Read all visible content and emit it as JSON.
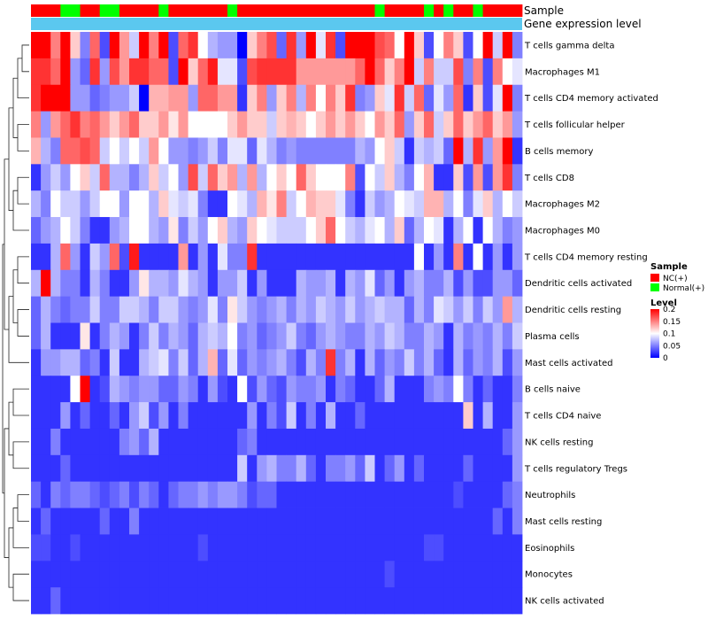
{
  "chart_data": {
    "type": "heatmap",
    "title": "",
    "rows": [
      "T cells gamma delta",
      "Macrophages M1",
      "T cells CD4 memory activated",
      "T cells follicular helper",
      "B cells memory",
      "T cells CD8",
      "Macrophages M2",
      "Macrophages M0",
      "T cells CD4 memory resting",
      "Dendritic cells activated",
      "Dendritic cells resting",
      "Plasma cells",
      "Mast cells activated",
      "B cells naive",
      "T cells CD4 naive",
      "NK cells resting",
      "T cells regulatory  Tregs",
      "Neutrophils",
      "Mast cells resting",
      "Eosinophils",
      "Monocytes",
      "NK cells activated"
    ],
    "sample_annotation": {
      "label": "Sample",
      "values": [
        "NC",
        "NC",
        "NC",
        "Normal",
        "Normal",
        "NC",
        "NC",
        "Normal",
        "Normal",
        "NC",
        "NC",
        "NC",
        "NC",
        "Normal",
        "NC",
        "NC",
        "NC",
        "NC",
        "NC",
        "NC",
        "Normal",
        "NC",
        "NC",
        "NC",
        "NC",
        "NC",
        "NC",
        "NC",
        "NC",
        "NC",
        "NC",
        "NC",
        "NC",
        "NC",
        "NC",
        "Normal",
        "NC",
        "NC",
        "NC",
        "NC",
        "Normal",
        "NC",
        "Normal",
        "NC",
        "NC",
        "Normal",
        "NC",
        "NC",
        "NC",
        "NC"
      ]
    },
    "gene_annotation": {
      "label": "Gene expression level",
      "color": "#5BC8EF"
    },
    "values": [
      [
        0.2,
        0.2,
        0.15,
        0.2,
        0.12,
        0.05,
        0.16,
        0.03,
        0.2,
        0.14,
        0.08,
        0.2,
        0.15,
        0.2,
        0.03,
        0.16,
        0.18,
        0.1,
        0.07,
        0.06,
        0.06,
        0,
        0.12,
        0.15,
        0.17,
        0.04,
        0.18,
        0.06,
        0.2,
        0.09,
        0.18,
        0.03,
        0.2,
        0.2,
        0.2,
        0.17,
        0.16,
        0.1,
        0.2,
        0.12,
        0.03,
        0.1,
        0.15,
        0.12,
        0.03,
        0.1,
        0.2,
        0.08,
        0.2,
        0.05
      ],
      [
        0.18,
        0.18,
        0.16,
        0.2,
        0.06,
        0.04,
        0.18,
        0.06,
        0.17,
        0.14,
        0.18,
        0.18,
        0.16,
        0.16,
        0.03,
        0.2,
        0.12,
        0.16,
        0.19,
        0.09,
        0.09,
        0.03,
        0.17,
        0.18,
        0.18,
        0.18,
        0.18,
        0.14,
        0.14,
        0.14,
        0.14,
        0.14,
        0.14,
        0.16,
        0.2,
        0.16,
        0.12,
        0.15,
        0.2,
        0.08,
        0.15,
        0.08,
        0.08,
        0.17,
        0.05,
        0.15,
        0.03,
        0.15,
        0.1,
        0.09
      ],
      [
        0.18,
        0.2,
        0.2,
        0.2,
        0.06,
        0.06,
        0.04,
        0.05,
        0.06,
        0.06,
        0.08,
        0,
        0.13,
        0.13,
        0.14,
        0.14,
        0.06,
        0.16,
        0.16,
        0.14,
        0.14,
        0.02,
        0.12,
        0.15,
        0.06,
        0.12,
        0.15,
        0.07,
        0.15,
        0.1,
        0.15,
        0.12,
        0.18,
        0.05,
        0.06,
        0.12,
        0.09,
        0.18,
        0.08,
        0.16,
        0.04,
        0.09,
        0.06,
        0.16,
        0.02,
        0.12,
        0.03,
        0.09,
        0.2,
        0.05
      ],
      [
        0.15,
        0.06,
        0.14,
        0.16,
        0.18,
        0.15,
        0.16,
        0.14,
        0.12,
        0.14,
        0.16,
        0.12,
        0.12,
        0.14,
        0.11,
        0.14,
        0.1,
        0.1,
        0.1,
        0.1,
        0.12,
        0.14,
        0.12,
        0.12,
        0.08,
        0.12,
        0.13,
        0.12,
        0.1,
        0.12,
        0.14,
        0.12,
        0.14,
        0.12,
        0.1,
        0.14,
        0.12,
        0.16,
        0.06,
        0.12,
        0.16,
        0.08,
        0.12,
        0.16,
        0.12,
        0.14,
        0.16,
        0.12,
        0.14,
        0.06
      ],
      [
        0.13,
        0.07,
        0.05,
        0.16,
        0.16,
        0.17,
        0.16,
        0.08,
        0.1,
        0.08,
        0.1,
        0.08,
        0.14,
        0.1,
        0.06,
        0.06,
        0.05,
        0.06,
        0.08,
        0.05,
        0.09,
        0.09,
        0.04,
        0.09,
        0.07,
        0.05,
        0.06,
        0.05,
        0.05,
        0.05,
        0.05,
        0.05,
        0.05,
        0.07,
        0.06,
        0.1,
        0.12,
        0.08,
        0.02,
        0.08,
        0.07,
        0.08,
        0.04,
        0.2,
        0.07,
        0.18,
        0.06,
        0.14,
        0.2,
        0.02
      ],
      [
        0.02,
        0.06,
        0.08,
        0.06,
        0.1,
        0.12,
        0.08,
        0.16,
        0.07,
        0.07,
        0.05,
        0.07,
        0.12,
        0.08,
        0.1,
        0.06,
        0.17,
        0.08,
        0.16,
        0.12,
        0.14,
        0.07,
        0.14,
        0.07,
        0.1,
        0.12,
        0.1,
        0.16,
        0.12,
        0.1,
        0.1,
        0.1,
        0.15,
        0.03,
        0.1,
        0.08,
        0.12,
        0.07,
        0.05,
        0.1,
        0.13,
        0.02,
        0.02,
        0.12,
        0.03,
        0.14,
        0.03,
        0.14,
        0.18,
        0.05
      ],
      [
        0.07,
        0.05,
        0.1,
        0.08,
        0.08,
        0.06,
        0.08,
        0.1,
        0.1,
        0.06,
        0.1,
        0.1,
        0.07,
        0.12,
        0.09,
        0.08,
        0.09,
        0.05,
        0.02,
        0.02,
        0.1,
        0.09,
        0.07,
        0.13,
        0.11,
        0.15,
        0.08,
        0.1,
        0.13,
        0.12,
        0.12,
        0.09,
        0.05,
        0.02,
        0.08,
        0.06,
        0.07,
        0.1,
        0.09,
        0.08,
        0.13,
        0.13,
        0.07,
        0.1,
        0.05,
        0.09,
        0.12,
        0.07,
        0.1,
        0.08
      ],
      [
        0.04,
        0.06,
        0.07,
        0.1,
        0.08,
        0.05,
        0.02,
        0.02,
        0.06,
        0.07,
        0.1,
        0.1,
        0.07,
        0.06,
        0.11,
        0.05,
        0.08,
        0.06,
        0.1,
        0.12,
        0.07,
        0.06,
        0.12,
        0.1,
        0.09,
        0.08,
        0.08,
        0.08,
        0.1,
        0.12,
        0.16,
        0.1,
        0.08,
        0.07,
        0.09,
        0.1,
        0.07,
        0.12,
        0.04,
        0.07,
        0.1,
        0.09,
        0.02,
        0.07,
        0.1,
        0.02,
        0.1,
        0.07,
        0.05,
        0.06
      ],
      [
        0.02,
        0.02,
        0.07,
        0.16,
        0.06,
        0.02,
        0.08,
        0.06,
        0.16,
        0.03,
        0.19,
        0.02,
        0.02,
        0.02,
        0.02,
        0.14,
        0.02,
        0.06,
        0.02,
        0.09,
        0.05,
        0.05,
        0.18,
        0.02,
        0.02,
        0.02,
        0.02,
        0.02,
        0.02,
        0.02,
        0.02,
        0.02,
        0.02,
        0.02,
        0.02,
        0.02,
        0.02,
        0.02,
        0.02,
        0.1,
        0.02,
        0.06,
        0.02,
        0.15,
        0.02,
        0.1,
        0.02,
        0.06,
        0.02,
        0.06
      ],
      [
        0.07,
        0.2,
        0.07,
        0.05,
        0.05,
        0.02,
        0.07,
        0.05,
        0.02,
        0.02,
        0.06,
        0.11,
        0.07,
        0.07,
        0.06,
        0.09,
        0.07,
        0.06,
        0.02,
        0.06,
        0.06,
        0.08,
        0.02,
        0.06,
        0.02,
        0.02,
        0.02,
        0.07,
        0.06,
        0.06,
        0.07,
        0.02,
        0.07,
        0.06,
        0.09,
        0.04,
        0.06,
        0.02,
        0.06,
        0.07,
        0.05,
        0.05,
        0.07,
        0.03,
        0.06,
        0.03,
        0.03,
        0.06,
        0.06,
        0.04
      ],
      [
        0.04,
        0.07,
        0.05,
        0.04,
        0.05,
        0.05,
        0.08,
        0.05,
        0.05,
        0.08,
        0.08,
        0.07,
        0.05,
        0.08,
        0.08,
        0.06,
        0.05,
        0.06,
        0.09,
        0.05,
        0.11,
        0.08,
        0.06,
        0.05,
        0.06,
        0.07,
        0.05,
        0.07,
        0.06,
        0.08,
        0.07,
        0.06,
        0.08,
        0.06,
        0.07,
        0.08,
        0.07,
        0.07,
        0.04,
        0.07,
        0.05,
        0.09,
        0.08,
        0.06,
        0.08,
        0.05,
        0.08,
        0.06,
        0.14,
        0.07
      ],
      [
        0.04,
        0.07,
        0.02,
        0.02,
        0.02,
        0.11,
        0.02,
        0.05,
        0.07,
        0.06,
        0.02,
        0.05,
        0.08,
        0.05,
        0.07,
        0.06,
        0.04,
        0.07,
        0.08,
        0.07,
        0.1,
        0.05,
        0.06,
        0.04,
        0.05,
        0.06,
        0.08,
        0.05,
        0.04,
        0.06,
        0.07,
        0.06,
        0.05,
        0.05,
        0.07,
        0.06,
        0.08,
        0.07,
        0.05,
        0.05,
        0.07,
        0.06,
        0.02,
        0.07,
        0.05,
        0.06,
        0.05,
        0.07,
        0.05,
        0.08
      ],
      [
        0.02,
        0.06,
        0.06,
        0.07,
        0.07,
        0.04,
        0.05,
        0.02,
        0.08,
        0.02,
        0.02,
        0.07,
        0.08,
        0.09,
        0.05,
        0.08,
        0.04,
        0.07,
        0.13,
        0.04,
        0.09,
        0.04,
        0.06,
        0.05,
        0.06,
        0.07,
        0.05,
        0.03,
        0.07,
        0.05,
        0.18,
        0.05,
        0.07,
        0.02,
        0.07,
        0.04,
        0.06,
        0.05,
        0.08,
        0.05,
        0.07,
        0.04,
        0.02,
        0.07,
        0.04,
        0.06,
        0.05,
        0.07,
        0.03,
        0.06
      ],
      [
        0.02,
        0.02,
        0.02,
        0.02,
        0.1,
        0.2,
        0.02,
        0.03,
        0.07,
        0.06,
        0.05,
        0.06,
        0.06,
        0.04,
        0.04,
        0.06,
        0.05,
        0.02,
        0.06,
        0.03,
        0.02,
        0.1,
        0.03,
        0.06,
        0.04,
        0.03,
        0.06,
        0.05,
        0.05,
        0.06,
        0.02,
        0.05,
        0.04,
        0.02,
        0.02,
        0.04,
        0.07,
        0.02,
        0.02,
        0.02,
        0.05,
        0.06,
        0.05,
        0.1,
        0.05,
        0.02,
        0.04,
        0.02,
        0.02,
        0.05
      ],
      [
        0.02,
        0.02,
        0.02,
        0.06,
        0.02,
        0.04,
        0.02,
        0.02,
        0.04,
        0.02,
        0.06,
        0.08,
        0.03,
        0.06,
        0.02,
        0.05,
        0.02,
        0.02,
        0.02,
        0.02,
        0.02,
        0.02,
        0.06,
        0.02,
        0.05,
        0.03,
        0.08,
        0.02,
        0.05,
        0.02,
        0.07,
        0.02,
        0.02,
        0.04,
        0.02,
        0.02,
        0.02,
        0.02,
        0.02,
        0.02,
        0.02,
        0.02,
        0.02,
        0.02,
        0.12,
        0.02,
        0.07,
        0.02,
        0.02,
        0.06
      ],
      [
        0.02,
        0.02,
        0.05,
        0.02,
        0.02,
        0.02,
        0.02,
        0.02,
        0.02,
        0.05,
        0.06,
        0.04,
        0.07,
        0.02,
        0.02,
        0.02,
        0.02,
        0.02,
        0.02,
        0.02,
        0.02,
        0.04,
        0.05,
        0.02,
        0.02,
        0.02,
        0.02,
        0.02,
        0.02,
        0.02,
        0.02,
        0.02,
        0.02,
        0.02,
        0.02,
        0.02,
        0.02,
        0.02,
        0.02,
        0.02,
        0.02,
        0.02,
        0.02,
        0.02,
        0.02,
        0.02,
        0.02,
        0.02,
        0.04,
        0.06
      ],
      [
        0.02,
        0.02,
        0.02,
        0.04,
        0.02,
        0.02,
        0.02,
        0.02,
        0.02,
        0.02,
        0.02,
        0.02,
        0.02,
        0.02,
        0.02,
        0.02,
        0.02,
        0.02,
        0.02,
        0.02,
        0.02,
        0.08,
        0.02,
        0.06,
        0.07,
        0.05,
        0.05,
        0.07,
        0.04,
        0.02,
        0.05,
        0.05,
        0.06,
        0.04,
        0.08,
        0.02,
        0.04,
        0.06,
        0.02,
        0.04,
        0.02,
        0.02,
        0.02,
        0.02,
        0.04,
        0.02,
        0.02,
        0.02,
        0.02,
        0.06
      ],
      [
        0.04,
        0.02,
        0.05,
        0.04,
        0.05,
        0.05,
        0.04,
        0.03,
        0.04,
        0.05,
        0.03,
        0.05,
        0.04,
        0.02,
        0.04,
        0.05,
        0.05,
        0.06,
        0.05,
        0.06,
        0.06,
        0.05,
        0.03,
        0.04,
        0.04,
        0.02,
        0.02,
        0.02,
        0.02,
        0.02,
        0.02,
        0.02,
        0.02,
        0.02,
        0.02,
        0.02,
        0.02,
        0.02,
        0.02,
        0.02,
        0.02,
        0.02,
        0.02,
        0.03,
        0.02,
        0.02,
        0.02,
        0.02,
        0.04,
        0.05
      ],
      [
        0.02,
        0.04,
        0.02,
        0.02,
        0.02,
        0.02,
        0.02,
        0.04,
        0.02,
        0.02,
        0.05,
        0.02,
        0.02,
        0.02,
        0.02,
        0.02,
        0.02,
        0.02,
        0.02,
        0.02,
        0.02,
        0.02,
        0.02,
        0.02,
        0.02,
        0.02,
        0.02,
        0.02,
        0.02,
        0.02,
        0.02,
        0.02,
        0.02,
        0.02,
        0.02,
        0.02,
        0.02,
        0.02,
        0.02,
        0.02,
        0.02,
        0.02,
        0.02,
        0.02,
        0.02,
        0.02,
        0.02,
        0.04,
        0.02,
        0.05
      ],
      [
        0.03,
        0.03,
        0.02,
        0.02,
        0.03,
        0.02,
        0.02,
        0.02,
        0.02,
        0.02,
        0.02,
        0.02,
        0.02,
        0.02,
        0.02,
        0.02,
        0.02,
        0.03,
        0.02,
        0.02,
        0.02,
        0.02,
        0.02,
        0.02,
        0.02,
        0.02,
        0.02,
        0.02,
        0.02,
        0.02,
        0.02,
        0.02,
        0.02,
        0.02,
        0.02,
        0.02,
        0.02,
        0.02,
        0.02,
        0.02,
        0.03,
        0.03,
        0.02,
        0.02,
        0.02,
        0.02,
        0.02,
        0.02,
        0.02,
        0.02
      ],
      [
        0.02,
        0.02,
        0.02,
        0.02,
        0.02,
        0.02,
        0.02,
        0.02,
        0.02,
        0.02,
        0.02,
        0.02,
        0.02,
        0.02,
        0.02,
        0.02,
        0.02,
        0.02,
        0.02,
        0.02,
        0.02,
        0.02,
        0.02,
        0.02,
        0.02,
        0.02,
        0.02,
        0.02,
        0.02,
        0.02,
        0.02,
        0.02,
        0.02,
        0.02,
        0.02,
        0.02,
        0.03,
        0.02,
        0.02,
        0.02,
        0.02,
        0.02,
        0.02,
        0.02,
        0.02,
        0.02,
        0.02,
        0.02,
        0.02,
        0.02
      ],
      [
        0.02,
        0.02,
        0.04,
        0.02,
        0.02,
        0.02,
        0.02,
        0.02,
        0.02,
        0.02,
        0.02,
        0.02,
        0.02,
        0.02,
        0.02,
        0.02,
        0.02,
        0.02,
        0.02,
        0.02,
        0.02,
        0.02,
        0.02,
        0.02,
        0.02,
        0.02,
        0.02,
        0.02,
        0.02,
        0.02,
        0.02,
        0.02,
        0.02,
        0.02,
        0.02,
        0.02,
        0.02,
        0.02,
        0.02,
        0.02,
        0.02,
        0.02,
        0.02,
        0.02,
        0.02,
        0.02,
        0.02,
        0.02,
        0.02,
        0.02
      ]
    ],
    "color_scale": {
      "min": 0,
      "mid": 0.1,
      "max": 0.2,
      "low_color": "#0000FF",
      "mid_color": "#FFFFFF",
      "high_color": "#FF0000"
    },
    "legend": {
      "position": "right",
      "sample_title": "Sample",
      "sample_entries": [
        {
          "label": "NC(+)",
          "color": "#FF0000"
        },
        {
          "label": "Normal(+)",
          "color": "#00FF00"
        }
      ],
      "level_title": "Level",
      "level_ticks": [
        0.2,
        0.15,
        0.1,
        0.05,
        0
      ]
    },
    "sample_colors": {
      "NC": "#FF0000",
      "Normal": "#00FF00"
    }
  }
}
